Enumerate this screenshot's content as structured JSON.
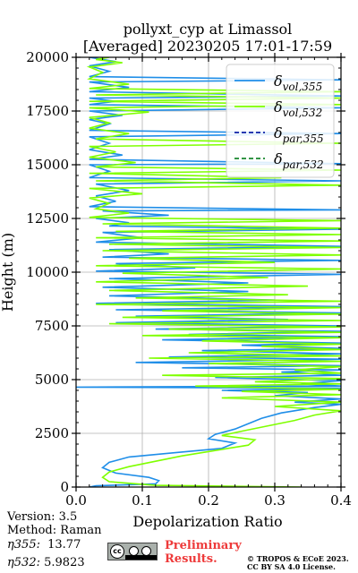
{
  "chart_data": {
    "type": "line",
    "title_line1": "pollyxt_cyp at Limassol",
    "title_line2": "[Averaged] 20230205 17:01-17:59",
    "xlabel": "Depolarization Ratio",
    "ylabel": "Height (m)",
    "xlim": [
      0,
      0.4
    ],
    "ylim": [
      0,
      20000
    ],
    "xticks": [
      0.0,
      0.1,
      0.2,
      0.3,
      0.4
    ],
    "xtick_labels": [
      "0.0",
      "0.1",
      "0.2",
      "0.3",
      "0.4"
    ],
    "yticks": [
      0,
      2500,
      5000,
      7500,
      10000,
      12500,
      15000,
      17500,
      20000
    ],
    "ytick_labels": [
      "0",
      "2500",
      "5000",
      "7500",
      "10000",
      "12500",
      "15000",
      "17500",
      "20000"
    ],
    "grid": true,
    "legend_position": "top-right",
    "series": [
      {
        "name": "δvol,355",
        "color": "#1f8ee8",
        "style": "solid",
        "points": [
          [
            0.02,
            0
          ],
          [
            0.03,
            60
          ],
          [
            0.12,
            150
          ],
          [
            0.125,
            300
          ],
          [
            0.11,
            450
          ],
          [
            0.06,
            650
          ],
          [
            0.04,
            900
          ],
          [
            0.05,
            1150
          ],
          [
            0.08,
            1400
          ],
          [
            0.15,
            1600
          ],
          [
            0.22,
            1800
          ],
          [
            0.24,
            2050
          ],
          [
            0.2,
            2250
          ],
          [
            0.21,
            2450
          ],
          [
            0.24,
            2700
          ],
          [
            0.26,
            2950
          ],
          [
            0.28,
            3200
          ],
          [
            0.31,
            3450
          ],
          [
            0.36,
            3700
          ],
          [
            0.4,
            3850
          ],
          [
            0.33,
            3950
          ],
          [
            0.4,
            4100
          ],
          [
            0.3,
            4250
          ],
          [
            0.35,
            4400
          ],
          [
            0.22,
            4500
          ],
          [
            0.4,
            4600
          ],
          [
            0.0,
            4650
          ],
          [
            0.4,
            4700
          ],
          [
            0.34,
            4800
          ],
          [
            0.4,
            4950
          ],
          [
            0.21,
            5100
          ],
          [
            0.4,
            5200
          ],
          [
            0.31,
            5350
          ],
          [
            0.4,
            5450
          ],
          [
            0.16,
            5550
          ],
          [
            0.4,
            5650
          ],
          [
            0.09,
            5800
          ],
          [
            0.4,
            5950
          ],
          [
            0.14,
            6050
          ],
          [
            0.4,
            6200
          ],
          [
            0.19,
            6350
          ],
          [
            0.4,
            6450
          ],
          [
            0.25,
            6600
          ],
          [
            0.4,
            6700
          ],
          [
            0.13,
            6850
          ],
          [
            0.4,
            7000
          ],
          [
            0.17,
            7100
          ],
          [
            0.4,
            7250
          ],
          [
            0.12,
            7350
          ],
          [
            0.4,
            7500
          ],
          [
            0.06,
            7650
          ],
          [
            0.32,
            7800
          ],
          [
            0.09,
            7950
          ],
          [
            0.4,
            8100
          ],
          [
            0.06,
            8250
          ],
          [
            0.4,
            8400
          ],
          [
            0.03,
            8550
          ],
          [
            0.3,
            8700
          ],
          [
            0.05,
            8900
          ],
          [
            0.26,
            9100
          ],
          [
            0.04,
            9300
          ],
          [
            0.26,
            9500
          ],
          [
            0.05,
            9700
          ],
          [
            0.4,
            9900
          ],
          [
            0.03,
            10050
          ],
          [
            0.18,
            10200
          ],
          [
            0.06,
            10400
          ],
          [
            0.4,
            10550
          ],
          [
            0.04,
            10700
          ],
          [
            0.14,
            10850
          ],
          [
            0.05,
            11050
          ],
          [
            0.4,
            11200
          ],
          [
            0.03,
            11400
          ],
          [
            0.1,
            11600
          ],
          [
            0.04,
            11850
          ],
          [
            0.4,
            12000
          ],
          [
            0.05,
            12150
          ],
          [
            0.08,
            12300
          ],
          [
            0.03,
            12500
          ],
          [
            0.14,
            12650
          ],
          [
            0.04,
            12850
          ],
          [
            0.4,
            12900
          ],
          [
            0.02,
            13050
          ],
          [
            0.06,
            13300
          ],
          [
            0.03,
            13550
          ],
          [
            0.08,
            13800
          ],
          [
            0.03,
            14100
          ],
          [
            0.4,
            14250
          ],
          [
            0.02,
            14400
          ],
          [
            0.05,
            14700
          ],
          [
            0.02,
            15000
          ],
          [
            0.4,
            15050
          ],
          [
            0.02,
            15250
          ],
          [
            0.07,
            15450
          ],
          [
            0.02,
            15700
          ],
          [
            0.05,
            16000
          ],
          [
            0.02,
            16300
          ],
          [
            0.4,
            16450
          ],
          [
            0.02,
            16600
          ],
          [
            0.05,
            16900
          ],
          [
            0.02,
            17100
          ],
          [
            0.07,
            17300
          ],
          [
            0.02,
            17500
          ],
          [
            0.4,
            17650
          ],
          [
            0.02,
            17800
          ],
          [
            0.06,
            17950
          ],
          [
            0.02,
            18100
          ],
          [
            0.4,
            18200
          ],
          [
            0.02,
            18400
          ],
          [
            0.08,
            18600
          ],
          [
            0.02,
            18850
          ],
          [
            0.4,
            18950
          ],
          [
            0.02,
            19100
          ],
          [
            0.05,
            19350
          ],
          [
            0.02,
            19600
          ],
          [
            0.06,
            19800
          ],
          [
            0.02,
            20000
          ]
        ]
      },
      {
        "name": "δvol,532",
        "color": "#7fff00",
        "style": "solid",
        "points": [
          [
            0.34,
            0
          ],
          [
            0.12,
            80
          ],
          [
            0.05,
            250
          ],
          [
            0.04,
            450
          ],
          [
            0.05,
            700
          ],
          [
            0.08,
            950
          ],
          [
            0.12,
            1200
          ],
          [
            0.16,
            1450
          ],
          [
            0.21,
            1700
          ],
          [
            0.26,
            1950
          ],
          [
            0.27,
            2200
          ],
          [
            0.22,
            2400
          ],
          [
            0.25,
            2600
          ],
          [
            0.29,
            2850
          ],
          [
            0.33,
            3100
          ],
          [
            0.36,
            3350
          ],
          [
            0.4,
            3550
          ],
          [
            0.3,
            3750
          ],
          [
            0.4,
            3950
          ],
          [
            0.22,
            4150
          ],
          [
            0.4,
            4300
          ],
          [
            0.25,
            4450
          ],
          [
            0.4,
            4550
          ],
          [
            0.18,
            4700
          ],
          [
            0.4,
            4800
          ],
          [
            0.27,
            4900
          ],
          [
            0.4,
            5050
          ],
          [
            0.13,
            5200
          ],
          [
            0.4,
            5300
          ],
          [
            0.33,
            5450
          ],
          [
            0.4,
            5600
          ],
          [
            0.2,
            5750
          ],
          [
            0.4,
            5850
          ],
          [
            0.11,
            6000
          ],
          [
            0.4,
            6100
          ],
          [
            0.17,
            6250
          ],
          [
            0.4,
            6400
          ],
          [
            0.28,
            6550
          ],
          [
            0.4,
            6650
          ],
          [
            0.19,
            6800
          ],
          [
            0.4,
            6950
          ],
          [
            0.1,
            7050
          ],
          [
            0.4,
            7200
          ],
          [
            0.14,
            7350
          ],
          [
            0.4,
            7450
          ],
          [
            0.05,
            7600
          ],
          [
            0.4,
            7750
          ],
          [
            0.07,
            7900
          ],
          [
            0.4,
            8050
          ],
          [
            0.13,
            8200
          ],
          [
            0.4,
            8350
          ],
          [
            0.03,
            8500
          ],
          [
            0.4,
            8650
          ],
          [
            0.09,
            8800
          ],
          [
            0.32,
            8950
          ],
          [
            0.05,
            9150
          ],
          [
            0.35,
            9350
          ],
          [
            0.03,
            9550
          ],
          [
            0.29,
            9750
          ],
          [
            0.07,
            9950
          ],
          [
            0.4,
            10150
          ],
          [
            0.03,
            10300
          ],
          [
            0.3,
            10450
          ],
          [
            0.08,
            10650
          ],
          [
            0.4,
            10800
          ],
          [
            0.04,
            11000
          ],
          [
            0.4,
            11150
          ],
          [
            0.05,
            11300
          ],
          [
            0.4,
            11450
          ],
          [
            0.03,
            11600
          ],
          [
            0.4,
            11750
          ],
          [
            0.06,
            11900
          ],
          [
            0.4,
            12050
          ],
          [
            0.04,
            12250
          ],
          [
            0.4,
            12400
          ],
          [
            0.02,
            12550
          ],
          [
            0.08,
            12750
          ],
          [
            0.03,
            12950
          ],
          [
            0.05,
            13200
          ],
          [
            0.02,
            13450
          ],
          [
            0.1,
            13650
          ],
          [
            0.02,
            13900
          ],
          [
            0.4,
            14050
          ],
          [
            0.03,
            14250
          ],
          [
            0.31,
            14400
          ],
          [
            0.02,
            14600
          ],
          [
            0.4,
            14750
          ],
          [
            0.03,
            14900
          ],
          [
            0.09,
            15100
          ],
          [
            0.02,
            15350
          ],
          [
            0.06,
            15600
          ],
          [
            0.02,
            15850
          ],
          [
            0.4,
            16000
          ],
          [
            0.03,
            16200
          ],
          [
            0.08,
            16450
          ],
          [
            0.02,
            16700
          ],
          [
            0.05,
            16950
          ],
          [
            0.02,
            17200
          ],
          [
            0.11,
            17450
          ],
          [
            0.02,
            17650
          ],
          [
            0.4,
            17800
          ],
          [
            0.02,
            17950
          ],
          [
            0.4,
            18100
          ],
          [
            0.03,
            18250
          ],
          [
            0.4,
            18400
          ],
          [
            0.02,
            18550
          ],
          [
            0.08,
            18750
          ],
          [
            0.02,
            19000
          ],
          [
            0.04,
            19300
          ],
          [
            0.02,
            19550
          ],
          [
            0.07,
            19750
          ],
          [
            0.03,
            19900
          ],
          [
            0.05,
            20000
          ]
        ]
      },
      {
        "name": "δpar,355",
        "color": "#0b1fa6",
        "style": "dashed",
        "points": []
      },
      {
        "name": "δpar,532",
        "color": "#17862c",
        "style": "dashed",
        "points": []
      }
    ]
  },
  "legend_labels": [
    {
      "base": "δ",
      "sub": "vol,355",
      "color": "#1f8ee8",
      "dash": "none"
    },
    {
      "base": "δ",
      "sub": "vol,532",
      "color": "#7fff00",
      "dash": "none"
    },
    {
      "base": "δ",
      "sub": "par,355",
      "color": "#0b1fa6",
      "dash": "5,3"
    },
    {
      "base": "δ",
      "sub": "par,532",
      "color": "#17862c",
      "dash": "5,3"
    }
  ],
  "footer": {
    "version": "Version: 3.5",
    "method": "Method: Raman",
    "eta355_label": "η355:",
    "eta355_value": "13.77",
    "eta532_label": "η532:",
    "eta532_value": "5.9823",
    "preliminary_line1": "Preliminary",
    "preliminary_line2": "Results.",
    "copyright_line1": "© TROPOS & ECoE 2023.",
    "copyright_line2": "CC BY SA 4.0 License.",
    "license_badge_text": "cc",
    "license_icons": [
      "cc-icon",
      "by-icon",
      "sa-icon"
    ]
  }
}
